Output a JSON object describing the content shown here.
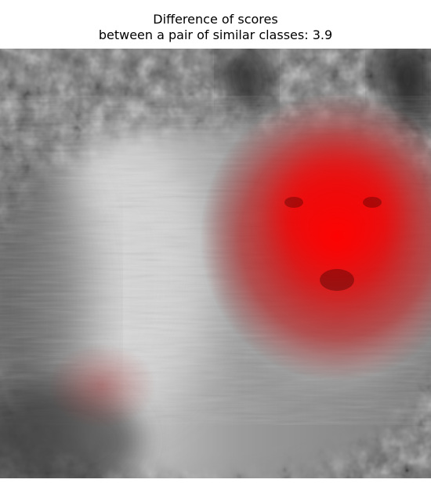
{
  "figure": {
    "title_line1": "Difference of scores",
    "title_line2": "between a pair of similar classes: 3.9"
  },
  "image": {
    "subject": "grayscale photo of a fluffy dog lying on gravel",
    "overlay": "red saliency heatmap centered on the dog's face",
    "heatmap_color": "#ff0000",
    "grayscale_palette": [
      "#1a1a1a",
      "#5a5a5a",
      "#8c8c8c",
      "#bdbdbd",
      "#e0e0e0"
    ]
  }
}
